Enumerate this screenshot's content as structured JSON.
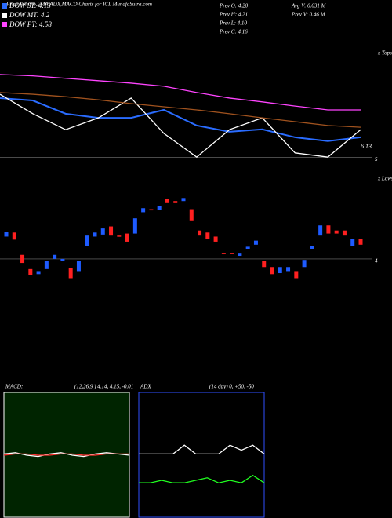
{
  "header": {
    "title": "Price,Volume,EMA,ADX,MACD Charts for ICL MunafaSutra.com",
    "info": [
      "Prev O: 4.20",
      "Prev H: 4.21",
      "Prev L: 4.10",
      "Prev C: 4.16"
    ],
    "volume_info": [
      "Avg V: 0.031 M",
      "Prev V: 0.46 M"
    ],
    "tops_label": "x Tops",
    "lows_label": "x Lows"
  },
  "chart_data": [
    {
      "type": "line",
      "price_label": 6.13,
      "ylim": [
        4.9,
        7.5
      ],
      "yticks": [
        5
      ],
      "grid": true,
      "series": [
        {
          "name": "DOW ST: 4.13",
          "color": "#2a6cff",
          "values": [
            6.71,
            6.64,
            6.26,
            6.14,
            6.14,
            6.37,
            5.92,
            5.74,
            5.81,
            5.58,
            5.47,
            5.58
          ]
        },
        {
          "name": "DOW MT: 4.2",
          "color": "#ffffff",
          "values": [
            6.82,
            6.26,
            5.8,
            6.14,
            6.71,
            5.69,
            5.01,
            5.8,
            6.14,
            5.13,
            5.01,
            5.8
          ]
        },
        {
          "name": "DOW PT: 4.58",
          "color": "#ff44ff",
          "values": [
            7.39,
            7.35,
            7.28,
            7.21,
            7.14,
            7.05,
            6.87,
            6.71,
            6.6,
            6.48,
            6.37,
            6.37
          ]
        },
        {
          "color": "#a0521e",
          "values": [
            6.87,
            6.82,
            6.75,
            6.66,
            6.55,
            6.46,
            6.37,
            6.26,
            6.14,
            6.03,
            5.92,
            5.87
          ]
        }
      ]
    },
    {
      "type": "candlestick",
      "ylim": [
        3.69,
        4.85
      ],
      "yticks": [
        4
      ],
      "grid": true,
      "up_color": "#1e5bff",
      "down_color": "#ff2020",
      "open": [
        4.22,
        4.26,
        4.04,
        3.9,
        3.85,
        3.9,
        4.0,
        3.98,
        3.91,
        3.88,
        4.13,
        4.22,
        4.24,
        4.32,
        4.23,
        4.25,
        4.25,
        4.46,
        4.49,
        4.48,
        4.59,
        4.57,
        4.57,
        4.49,
        4.28,
        4.26,
        4.22,
        4.06,
        4.06,
        4.03,
        4.1,
        4.14,
        3.98,
        3.92,
        3.86,
        3.88,
        3.88,
        3.92,
        4.1,
        4.23,
        4.33,
        4.28,
        4.28,
        4.13,
        4.2
      ],
      "close": [
        4.27,
        4.19,
        3.96,
        3.84,
        3.88,
        3.98,
        4.04,
        4.0,
        3.81,
        3.98,
        4.23,
        4.26,
        4.3,
        4.23,
        4.22,
        4.17,
        4.4,
        4.5,
        4.48,
        4.52,
        4.55,
        4.55,
        4.6,
        4.38,
        4.23,
        4.2,
        4.17,
        4.05,
        4.05,
        4.06,
        4.12,
        4.18,
        3.92,
        3.85,
        3.92,
        3.92,
        3.81,
        3.99,
        4.13,
        4.33,
        4.25,
        4.25,
        4.23,
        4.2,
        4.14
      ]
    },
    {
      "type": "line",
      "title": "MACD:",
      "subtitle": "(12,26,9 ) 4.14, 4.15, -0.01",
      "ylim": [
        -0.5,
        0.5
      ],
      "background": "#002400",
      "border": "#ffffff",
      "series": [
        {
          "color": "#ffffff",
          "values": [
            0.01,
            0.02,
            0,
            -0.01,
            0.01,
            0.02,
            0,
            -0.01,
            0.01,
            0.02,
            0.01,
            0
          ]
        },
        {
          "color": "#ff3030",
          "values": [
            0,
            0.01,
            0.01,
            0,
            0,
            0.01,
            0.01,
            0,
            0,
            0.01,
            0.01,
            0.01
          ]
        }
      ]
    },
    {
      "type": "line",
      "title": "ADX",
      "subtitle": "(14 day) 0, +50, -50",
      "ylim": [
        0,
        100
      ],
      "background": "#000000",
      "border": "#3050ff",
      "series": [
        {
          "color": "#ffffff",
          "values": [
            51,
            51,
            51,
            51,
            58,
            51,
            51,
            51,
            58,
            54,
            58,
            51
          ]
        },
        {
          "color": "#20ff20",
          "values": [
            28,
            28,
            30,
            28,
            28,
            30,
            32,
            28,
            30,
            28,
            34,
            28
          ]
        }
      ]
    }
  ]
}
